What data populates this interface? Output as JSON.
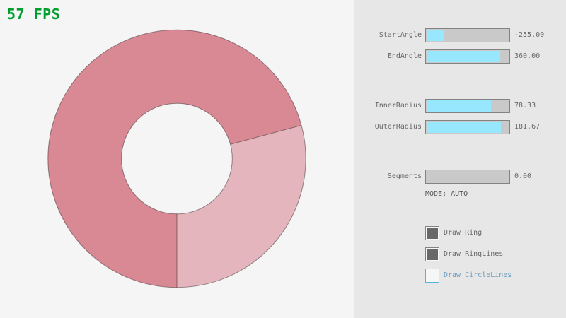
{
  "fps": {
    "text": "57 FPS"
  },
  "colors": {
    "fps_text": "#009e2f",
    "panel_bg": "#e7e7e7",
    "panel_line": "#d6d6d6",
    "gui_border": "#838383",
    "gui_text": "#686868",
    "slider_bg": "#c9c9c9",
    "slider_fill": "#97e8ff",
    "check_bg": "#f6f6f6",
    "check_fill": "#686868",
    "focus_border": "#5bb2d9",
    "focus_bg": "#f4f6f7",
    "focus_text": "#6c9bbc",
    "mode_text": "#505050",
    "ring_dark": "#d98994",
    "ring_light": "#e4b5bc",
    "ring_line": "rgba(0,0,0,0.4)"
  },
  "panel": {
    "sliders": [
      {
        "label": "StartAngle",
        "value": "-255.00",
        "fraction": 0.2167
      },
      {
        "label": "EndAngle",
        "value": "360.00",
        "fraction": 0.9
      },
      {
        "label": "InnerRadius",
        "value": "78.33",
        "fraction": 0.7833
      },
      {
        "label": "OuterRadius",
        "value": "181.67",
        "fraction": 0.9083
      },
      {
        "label": "Segments",
        "value": "0.00",
        "fraction": 0
      }
    ],
    "mode_text": "MODE: AUTO",
    "checkboxes": [
      {
        "label": "Draw Ring",
        "checked": true,
        "focused": false
      },
      {
        "label": "Draw RingLines",
        "checked": true,
        "focused": false
      },
      {
        "label": "Draw CircleLines",
        "checked": false,
        "focused": true
      }
    ]
  }
}
